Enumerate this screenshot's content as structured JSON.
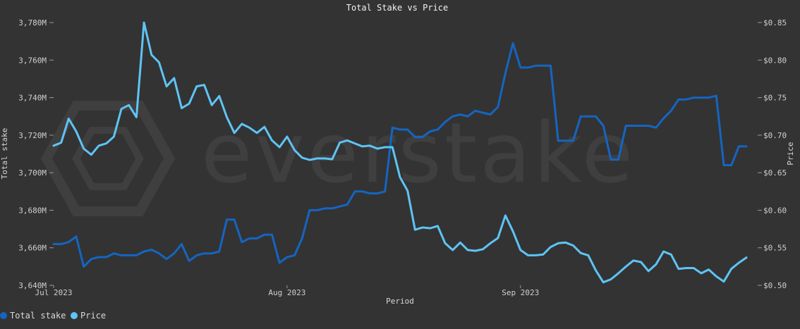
{
  "colors": {
    "background": "#333333",
    "grid": "#3e3e3e",
    "total_stake": "#1565c0",
    "price": "#5ec4f5"
  },
  "chart_data": {
    "type": "line",
    "title": "Total Stake vs Price",
    "xlabel": "Period",
    "ylabel": "Total stake",
    "y2label": "Price",
    "watermark": "everstake",
    "ylim": [
      3640,
      3780
    ],
    "y2lim": [
      0.5,
      0.85
    ],
    "yticks": [
      "3,640M",
      "3,660M",
      "3,680M",
      "3,700M",
      "3,720M",
      "3,740M",
      "3,760M",
      "3,780M"
    ],
    "y2ticks": [
      "$0.50",
      "$0.55",
      "$0.60",
      "$0.65",
      "$0.70",
      "$0.75",
      "$0.80",
      "$0.85"
    ],
    "xticks": [
      {
        "day": 0,
        "label": "Jul 2023"
      },
      {
        "day": 31,
        "label": "Aug 2023"
      },
      {
        "day": 62,
        "label": "Sep 2023"
      }
    ],
    "legend": {
      "position": "bottom-left",
      "entries": [
        "Total stake",
        "Price"
      ]
    },
    "grid": false,
    "series": [
      {
        "name": "Total stake",
        "axis": "left",
        "values": [
          3662,
          3662,
          3663,
          3666,
          3650,
          3654,
          3655,
          3655,
          3657,
          3656,
          3656,
          3656,
          3658,
          3659,
          3657,
          3654,
          3657,
          3662,
          3653,
          3656,
          3657,
          3657,
          3658,
          3675,
          3675,
          3663,
          3665,
          3665,
          3667,
          3667,
          3652,
          3655,
          3656,
          3665,
          3680,
          3680,
          3681,
          3681,
          3682,
          3683,
          3690,
          3690,
          3689,
          3689,
          3690,
          3724,
          3723,
          3723,
          3719,
          3719,
          3722,
          3723,
          3727,
          3730,
          3731,
          3730,
          3733,
          3732,
          3731,
          3735,
          3753,
          3769,
          3756,
          3756,
          3757,
          3757,
          3757,
          3717,
          3717,
          3717,
          3730,
          3730,
          3730,
          3725,
          3707,
          3707,
          3725,
          3725,
          3725,
          3725,
          3724,
          3729,
          3733,
          3739,
          3739,
          3740,
          3740,
          3740,
          3741,
          3704,
          3704,
          3714,
          3714
        ]
      },
      {
        "name": "Price",
        "axis": "right",
        "values": [
          0.686,
          0.69,
          0.722,
          0.705,
          0.682,
          0.674,
          0.686,
          0.689,
          0.698,
          0.735,
          0.74,
          0.724,
          0.85,
          0.807,
          0.797,
          0.765,
          0.776,
          0.736,
          0.742,
          0.765,
          0.767,
          0.74,
          0.752,
          0.724,
          0.703,
          0.715,
          0.71,
          0.703,
          0.711,
          0.693,
          0.684,
          0.698,
          0.68,
          0.67,
          0.667,
          0.669,
          0.669,
          0.668,
          0.69,
          0.693,
          0.689,
          0.685,
          0.686,
          0.682,
          0.684,
          0.684,
          0.644,
          0.626,
          0.574,
          0.577,
          0.576,
          0.579,
          0.556,
          0.547,
          0.557,
          0.547,
          0.546,
          0.548,
          0.556,
          0.563,
          0.593,
          0.572,
          0.547,
          0.54,
          0.54,
          0.541,
          0.551,
          0.556,
          0.557,
          0.553,
          0.543,
          0.54,
          0.52,
          0.504,
          0.508,
          0.516,
          0.525,
          0.533,
          0.531,
          0.519,
          0.528,
          0.545,
          0.541,
          0.522,
          0.523,
          0.523,
          0.516,
          0.521,
          0.512,
          0.505,
          0.522,
          0.53,
          0.537
        ]
      }
    ]
  }
}
